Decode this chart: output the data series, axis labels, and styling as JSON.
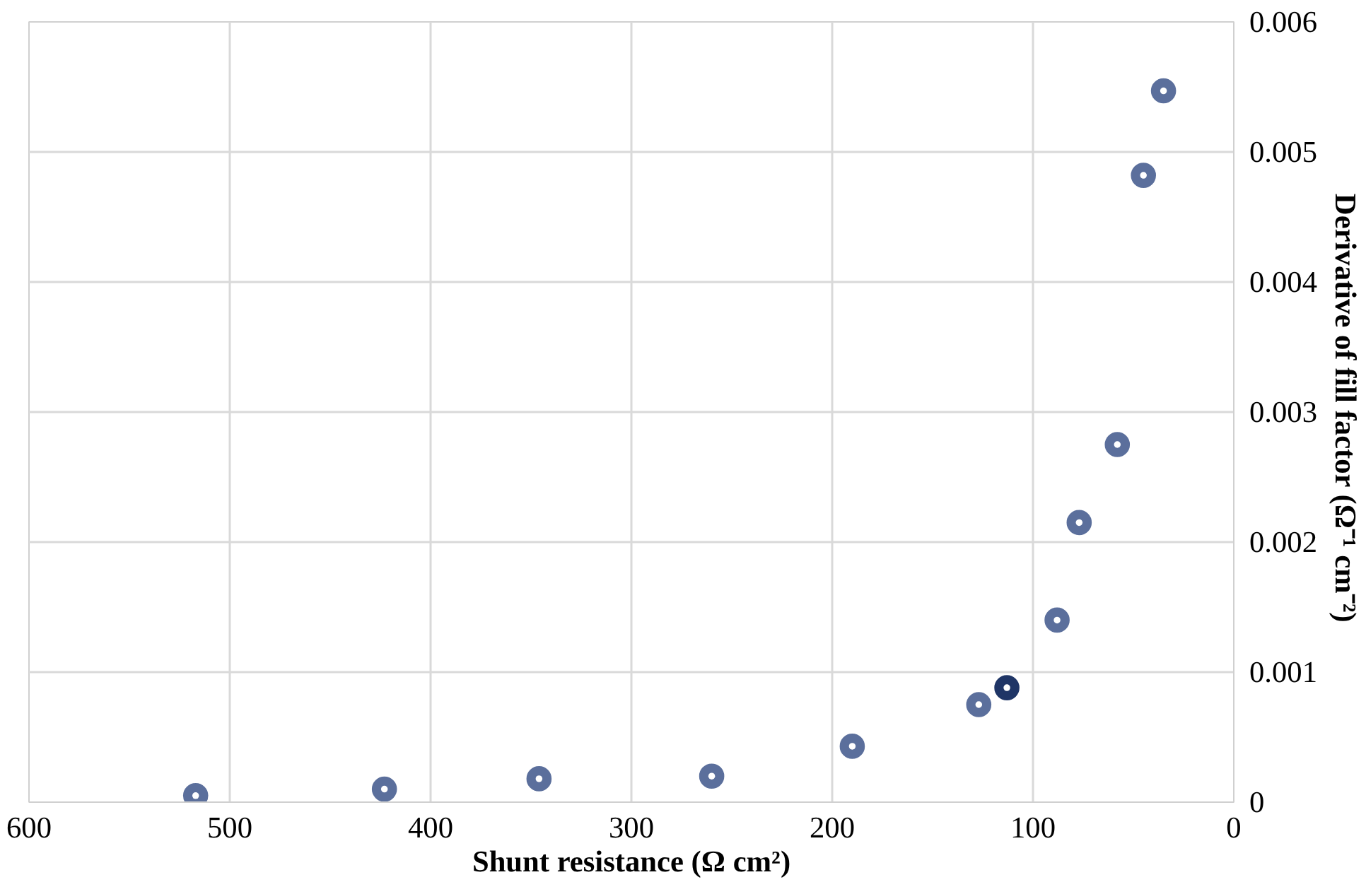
{
  "chart_data": {
    "type": "scatter",
    "xlabel": "Shunt resistance (Ω cm²)",
    "ylabel": "Derivative of  fill factor (Ω⁻¹ cm⁻²)",
    "x": [
      517,
      423,
      346,
      260,
      190,
      127,
      113,
      88,
      77,
      58,
      45,
      35
    ],
    "values": [
      5e-05,
      0.0001,
      0.00018,
      0.0002,
      0.00043,
      0.00075,
      0.00088,
      0.0014,
      0.00215,
      0.00275,
      0.00482,
      0.00547
    ],
    "colors": [
      "#5b6f9c",
      "#5b6f9c",
      "#5b6f9c",
      "#5b6f9c",
      "#5b6f9c",
      "#5b6f9c",
      "#1f3566",
      "#5b6f9c",
      "#5b6f9c",
      "#5b6f9c",
      "#5b6f9c",
      "#5b6f9c"
    ],
    "xlim": [
      600,
      0
    ],
    "ylim": [
      0,
      0.006
    ],
    "xticks": [
      600,
      500,
      400,
      300,
      200,
      100,
      0
    ],
    "yticks": [
      0,
      0.001,
      0.002,
      0.003,
      0.004,
      0.005,
      0.006
    ],
    "grid": true,
    "marker": "circle"
  }
}
